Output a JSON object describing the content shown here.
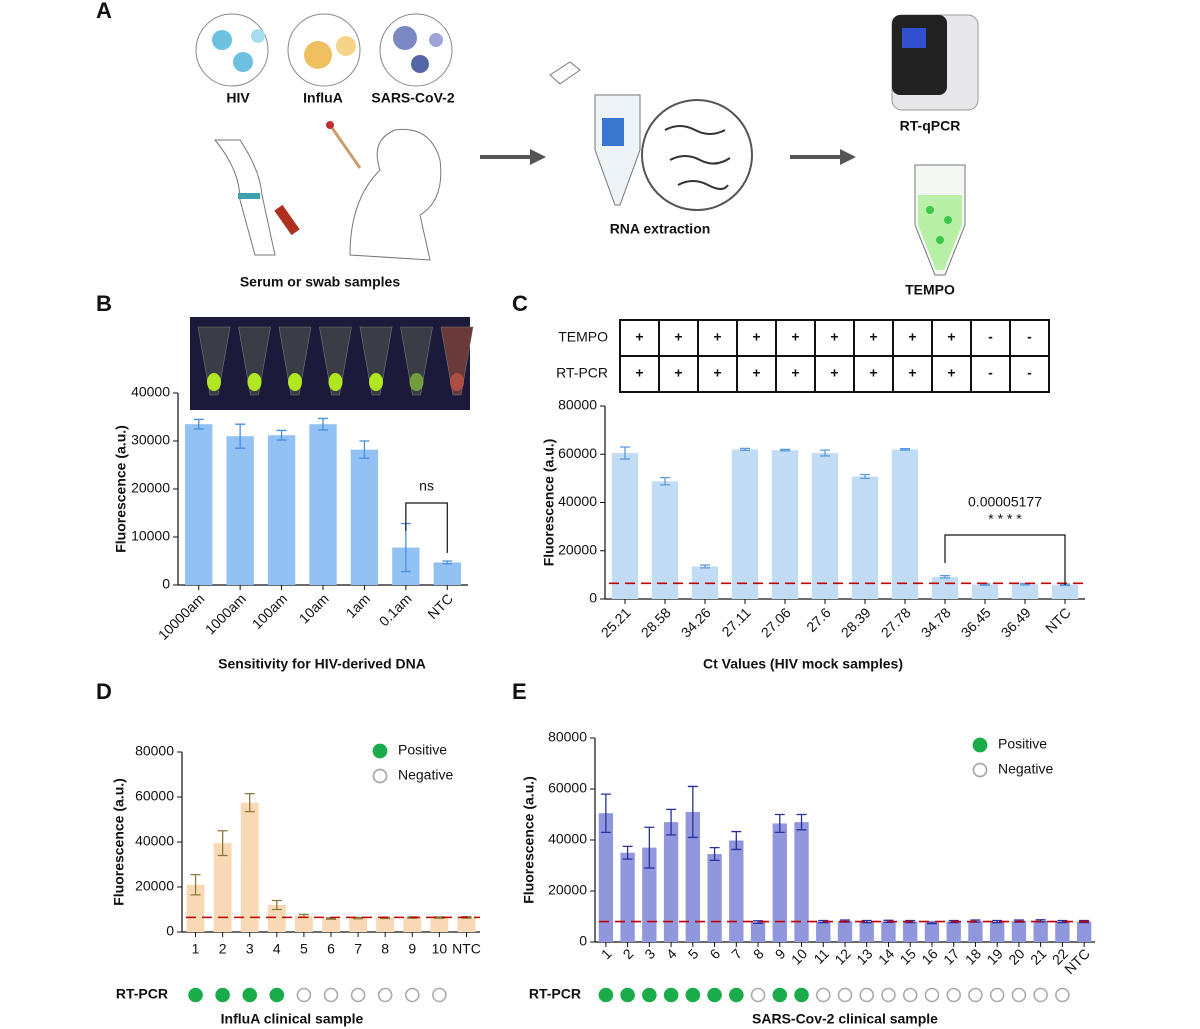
{
  "panel_a": {
    "label": "A",
    "viruses": [
      "HIV",
      "InfluA",
      "SARS-CoV-2"
    ],
    "samples": "Serum or swab samples",
    "extraction": "RNA extraction",
    "methods": [
      "RT-qPCR",
      "TEMPO"
    ]
  },
  "chart_data": [
    {
      "panel": "B",
      "type": "bar",
      "x_label": "Sensitivity for HIV-derived DNA",
      "y_label": "Fluorescence (a.u.)",
      "categories": [
        "10000am",
        "1000am",
        "100am",
        "10am",
        "1am",
        "0.1am",
        "NTC"
      ],
      "values": [
        33500,
        31000,
        31200,
        33500,
        28200,
        7800,
        4700
      ],
      "errors": [
        1000,
        2500,
        1000,
        1200,
        1800,
        5000,
        300
      ],
      "color": "#92c1f4",
      "error_color": "#4a8fe0",
      "ylim": [
        0,
        40000
      ],
      "yticks": [
        0,
        10000,
        20000,
        30000,
        40000
      ],
      "significance": "ns"
    },
    {
      "panel": "C",
      "type": "bar",
      "x_label": "Ct Values (HIV mock samples)",
      "y_label": "Fluorescence (a.u.)",
      "categories": [
        "25.21",
        "28.58",
        "34.26",
        "27.11",
        "27.06",
        "27.6",
        "28.39",
        "27.78",
        "34.78",
        "36.45",
        "36.49",
        "NTC"
      ],
      "values": [
        60500,
        48800,
        13500,
        62000,
        61700,
        60500,
        50800,
        62000,
        9200,
        6000,
        6100,
        5900
      ],
      "errors": [
        2500,
        1500,
        600,
        400,
        300,
        1200,
        800,
        300,
        500,
        300,
        300,
        300
      ],
      "color": "#c3dcf6",
      "error_color": "#5a9be0",
      "ylim": [
        0,
        80000
      ],
      "yticks": [
        0,
        20000,
        40000,
        60000,
        80000
      ],
      "threshold": 6500,
      "threshold_color": "#c00000",
      "significance": "* * * *",
      "p_value": "0.00005177",
      "table": {
        "rows": [
          {
            "label": "TEMPO",
            "cells": [
              "+",
              "+",
              "+",
              "+",
              "+",
              "+",
              "+",
              "+",
              "+",
              "-",
              "-"
            ]
          },
          {
            "label": "RT-PCR",
            "cells": [
              "+",
              "+",
              "+",
              "+",
              "+",
              "+",
              "+",
              "+",
              "+",
              "-",
              "-"
            ]
          }
        ]
      }
    },
    {
      "panel": "D",
      "type": "bar",
      "x_label": "InfluA clinical sample",
      "y_label": "Fluorescence (a.u.)",
      "categories": [
        "1",
        "2",
        "3",
        "4",
        "5",
        "6",
        "7",
        "8",
        "9",
        "10",
        "NTC"
      ],
      "values": [
        21000,
        39500,
        57500,
        12000,
        7200,
        6000,
        6200,
        6300,
        6400,
        6400,
        6500
      ],
      "errors": [
        4500,
        5500,
        4000,
        2000,
        600,
        300,
        300,
        300,
        300,
        300,
        300
      ],
      "color": "#f9d9b5",
      "error_color": "#8a7a3a",
      "ylim": [
        0,
        80000
      ],
      "yticks": [
        0,
        20000,
        40000,
        60000,
        80000
      ],
      "threshold": 6500,
      "threshold_color": "#c00000",
      "legend": [
        {
          "name": "Positive",
          "color": "#1aab4b",
          "filled": true
        },
        {
          "name": "Negative",
          "color": "#aaaaaa",
          "filled": false
        }
      ],
      "rt_pcr_label": "RT-PCR",
      "rt_pcr": [
        true,
        true,
        true,
        true,
        false,
        false,
        false,
        false,
        false,
        false
      ]
    },
    {
      "panel": "E",
      "type": "bar",
      "x_label": "SARS-Cov-2 clinical sample",
      "y_label": "Fluorescence (a.u.)",
      "categories": [
        "1",
        "2",
        "3",
        "4",
        "5",
        "6",
        "7",
        "8",
        "9",
        "10",
        "11",
        "12",
        "13",
        "14",
        "15",
        "16",
        "17",
        "18",
        "19",
        "20",
        "21",
        "22",
        "NTC"
      ],
      "values": [
        50500,
        35000,
        37000,
        47000,
        51000,
        34500,
        39800,
        7800,
        46500,
        47000,
        8000,
        8200,
        8000,
        8100,
        8000,
        7500,
        8000,
        8200,
        8000,
        8200,
        8300,
        8000,
        8000
      ],
      "errors": [
        7500,
        2500,
        8000,
        5000,
        10000,
        2500,
        3500,
        500,
        3500,
        3000,
        400,
        400,
        400,
        400,
        400,
        300,
        400,
        400,
        400,
        400,
        400,
        400,
        400
      ],
      "color": "#9097dc",
      "error_color": "#2a2fa0",
      "ylim": [
        0,
        80000
      ],
      "yticks": [
        0,
        20000,
        40000,
        60000,
        80000
      ],
      "threshold": 8000,
      "threshold_color": "#c00000",
      "legend": [
        {
          "name": "Positive",
          "color": "#1aab4b",
          "filled": true
        },
        {
          "name": "Negative",
          "color": "#aaaaaa",
          "filled": false
        }
      ],
      "rt_pcr_label": "RT-PCR",
      "rt_pcr": [
        true,
        true,
        true,
        true,
        true,
        true,
        true,
        false,
        true,
        true,
        false,
        false,
        false,
        false,
        false,
        false,
        false,
        false,
        false,
        false,
        false,
        false
      ]
    }
  ]
}
